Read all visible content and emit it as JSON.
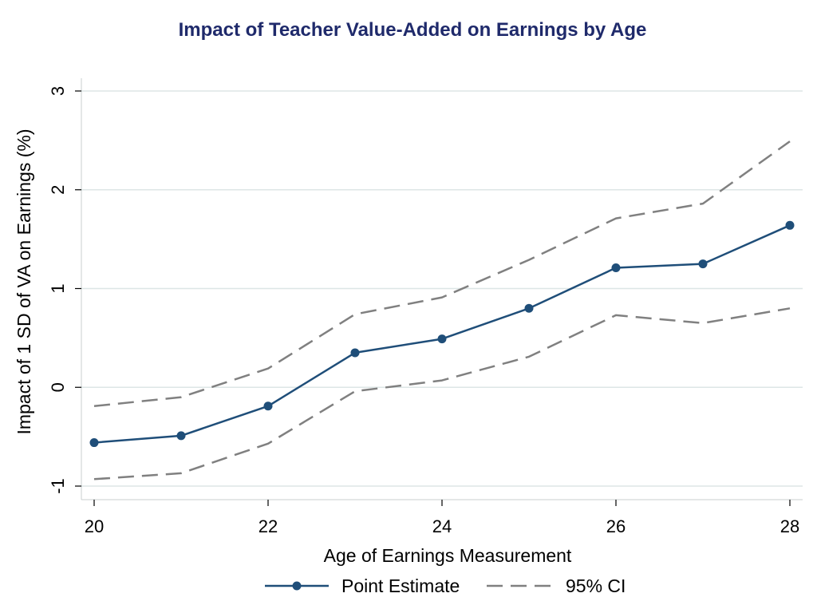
{
  "chart_data": {
    "type": "line",
    "title": "Impact of Teacher Value-Added on Earnings by Age",
    "xlabel": "Age of Earnings Measurement",
    "ylabel": "Impact of 1 SD of VA on Earnings (%)",
    "xlim": [
      20,
      28
    ],
    "ylim": [
      -1,
      3
    ],
    "x_ticks": [
      "20",
      "22",
      "24",
      "26",
      "28"
    ],
    "y_ticks": [
      "-1",
      "0",
      "1",
      "2",
      "3"
    ],
    "grid": "horizontal",
    "legend_position": "bottom",
    "x": [
      20,
      21,
      22,
      23,
      24,
      25,
      26,
      27,
      28
    ],
    "series": [
      {
        "name": "Point Estimate",
        "style": "solid-markers",
        "color": "#1f4e79",
        "values": [
          -0.56,
          -0.49,
          -0.19,
          0.35,
          0.49,
          0.8,
          1.21,
          1.25,
          1.64
        ]
      },
      {
        "name": "95% CI",
        "style": "dashed",
        "color": "#808080",
        "values": [
          -0.19,
          -0.1,
          0.19,
          0.74,
          0.91,
          1.29,
          1.71,
          1.86,
          2.49
        ]
      },
      {
        "name": "",
        "style": "dashed",
        "color": "#808080",
        "values": [
          -0.93,
          -0.87,
          -0.57,
          -0.04,
          0.07,
          0.31,
          0.73,
          0.65,
          0.8
        ]
      }
    ],
    "colors": {
      "title": "#1f2a6b",
      "grid": "#dde6e6",
      "axis": "#000000"
    }
  }
}
